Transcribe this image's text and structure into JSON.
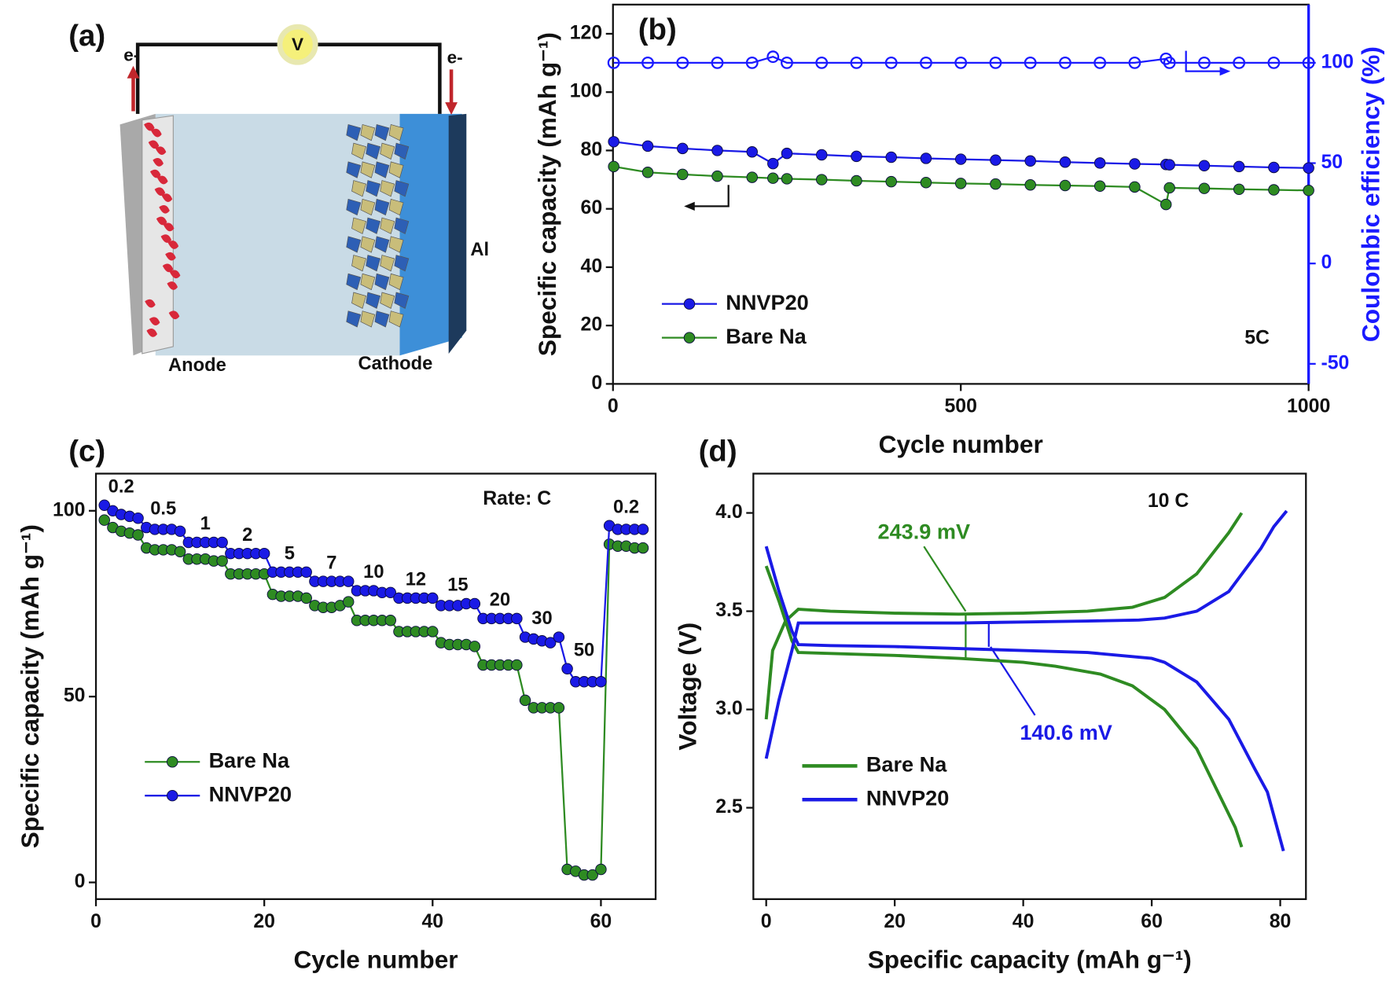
{
  "diagram": {
    "label": "(a)",
    "voltmeter": "V",
    "electron_left": "e-",
    "electron_right": "e-",
    "anode": "Anode",
    "cathode": "Cathode",
    "collector": "Al"
  },
  "chart_data": [
    {
      "type": "line",
      "panel_label": "(b)",
      "xlabel": "Cycle number",
      "ylabel": "Specific capacity (mAh g⁻¹)",
      "y2label": "Coulombic efficiency (%)",
      "x": [
        1,
        50,
        100,
        150,
        200,
        230,
        250,
        300,
        350,
        400,
        450,
        500,
        550,
        600,
        650,
        700,
        750,
        795,
        800,
        850,
        900,
        950,
        1000
      ],
      "series": [
        {
          "name": "NNVP20",
          "color": "#1a1ae6",
          "marker": "filled",
          "values": [
            83,
            81.5,
            80.7,
            80,
            79.5,
            75.5,
            79,
            78.5,
            78,
            77.7,
            77.3,
            77,
            76.7,
            76.4,
            76,
            75.7,
            75.4,
            75.2,
            75.1,
            74.8,
            74.5,
            74.2,
            74
          ]
        },
        {
          "name": "Bare Na",
          "color": "#2e8b22",
          "marker": "filled",
          "values": [
            74.5,
            72.5,
            71.8,
            71.2,
            70.8,
            70.5,
            70.3,
            70,
            69.6,
            69.3,
            69,
            68.7,
            68.5,
            68.2,
            68,
            67.8,
            67.5,
            61.5,
            67.2,
            67,
            66.7,
            66.5,
            66.3
          ]
        },
        {
          "color": "#1a1aff",
          "marker": "open",
          "axis": "y2",
          "values": [
            100,
            100,
            100,
            100,
            100,
            103,
            100,
            100,
            100,
            100,
            100,
            100,
            100,
            100,
            100,
            100,
            100,
            102,
            100,
            100,
            100,
            100,
            100
          ]
        }
      ],
      "xlim": [
        0,
        1000
      ],
      "xticks": [
        0,
        500,
        1000
      ],
      "ylim": [
        0,
        130
      ],
      "yticks": [
        0,
        20,
        40,
        60,
        80,
        100,
        120
      ],
      "y2lim": [
        -60,
        129
      ],
      "y2ticks": [
        -50,
        0,
        50,
        100
      ],
      "y2color": "#1a1aff",
      "legend": "lower left",
      "annotations": [
        "5C"
      ]
    },
    {
      "type": "line",
      "panel_label": "(c)",
      "xlabel": "Cycle number",
      "ylabel": "Specific capacity (mAh g⁻¹)",
      "x": [
        1,
        2,
        3,
        4,
        5,
        6,
        7,
        8,
        9,
        10,
        11,
        12,
        13,
        14,
        15,
        16,
        17,
        18,
        19,
        20,
        21,
        22,
        23,
        24,
        25,
        26,
        27,
        28,
        29,
        30,
        31,
        32,
        33,
        34,
        35,
        36,
        37,
        38,
        39,
        40,
        41,
        42,
        43,
        44,
        45,
        46,
        47,
        48,
        49,
        50,
        51,
        52,
        53,
        54,
        55,
        56,
        57,
        58,
        59,
        60,
        61,
        62,
        63,
        64,
        65
      ],
      "series": [
        {
          "name": "Bare Na",
          "color": "#2e8b22",
          "marker": "filled",
          "values": [
            97.5,
            95.5,
            94.5,
            94,
            93.5,
            90,
            89.5,
            89.5,
            89.5,
            89,
            87,
            87,
            87,
            86.5,
            86.5,
            83,
            83,
            83,
            83,
            83,
            77.5,
            77,
            77,
            77,
            76.5,
            74.5,
            74,
            74,
            74.5,
            75.5,
            70.5,
            70.5,
            70.5,
            70.5,
            70.5,
            67.5,
            67.5,
            67.5,
            67.5,
            67.5,
            64.5,
            64,
            64,
            64,
            63.5,
            58.5,
            58.5,
            58.5,
            58.5,
            58.5,
            49,
            47,
            47,
            47,
            47,
            3.5,
            3,
            2,
            2,
            3.5,
            91,
            90.5,
            90.5,
            90,
            90
          ]
        },
        {
          "name": "NNVP20",
          "color": "#1a1ae6",
          "marker": "filled",
          "values": [
            101.5,
            100,
            99,
            98.5,
            98,
            95.5,
            95,
            95,
            95,
            94.5,
            91.5,
            91.5,
            91.5,
            91.5,
            91.5,
            88.5,
            88.5,
            88.5,
            88.5,
            88.5,
            83.5,
            83.5,
            83.5,
            83.5,
            83.5,
            81,
            81,
            81,
            81,
            81,
            78.5,
            78.5,
            78.5,
            78,
            78,
            76.5,
            76.5,
            76.5,
            76.5,
            76.5,
            74.5,
            74.5,
            74.5,
            75,
            75,
            71,
            71,
            71,
            71,
            71,
            66,
            65.5,
            65,
            64.5,
            66,
            57.5,
            54,
            54,
            54,
            54,
            96,
            95,
            95,
            95,
            95
          ]
        }
      ],
      "xlim": [
        0,
        66.5
      ],
      "xticks": [
        0,
        20,
        40,
        60
      ],
      "ylim": [
        -4.5,
        110
      ],
      "yticks": [
        0,
        50,
        100
      ],
      "legend": "center left",
      "annotations": [
        "Rate: C"
      ],
      "rate_labels": [
        "0.2",
        "0.5",
        "1",
        "2",
        "5",
        "7",
        "10",
        "12",
        "15",
        "20",
        "30",
        "50",
        "0.2"
      ]
    },
    {
      "type": "line",
      "panel_label": "(d)",
      "xlabel": "Specific capacity (mAh g⁻¹)",
      "ylabel": "Voltage (V)",
      "series": [
        {
          "name": "Bare Na",
          "color": "#2e8b22",
          "x": [
            0,
            1,
            3,
            5,
            10,
            20,
            30,
            40,
            50,
            57,
            62,
            67,
            72,
            74,
            null,
            0,
            2,
            4,
            5,
            10,
            20,
            30,
            40,
            45,
            52,
            57,
            62,
            67,
            70,
            73,
            74
          ],
          "values": [
            2.95,
            3.3,
            3.45,
            3.51,
            3.5,
            3.49,
            3.485,
            3.49,
            3.5,
            3.52,
            3.57,
            3.69,
            3.9,
            4.0,
            null,
            3.73,
            3.55,
            3.35,
            3.29,
            3.285,
            3.275,
            3.26,
            3.24,
            3.22,
            3.18,
            3.12,
            3.0,
            2.8,
            2.6,
            2.4,
            2.3
          ]
        },
        {
          "name": "NNVP20",
          "color": "#1a1ae6",
          "x": [
            0,
            2,
            4,
            5,
            10,
            20,
            30,
            40,
            50,
            58,
            62,
            67,
            72,
            77,
            79,
            81,
            null,
            0,
            2,
            4,
            5,
            10,
            20,
            30,
            40,
            50,
            60,
            62,
            67,
            72,
            76,
            78,
            80.5
          ],
          "values": [
            2.75,
            3.05,
            3.3,
            3.44,
            3.44,
            3.44,
            3.44,
            3.445,
            3.45,
            3.455,
            3.465,
            3.5,
            3.6,
            3.82,
            3.93,
            4.01,
            null,
            3.83,
            3.6,
            3.4,
            3.33,
            3.325,
            3.32,
            3.31,
            3.3,
            3.29,
            3.26,
            3.24,
            3.14,
            2.95,
            2.7,
            2.58,
            2.28
          ]
        }
      ],
      "xlim": [
        -2,
        84
      ],
      "xticks": [
        0,
        20,
        40,
        60,
        80
      ],
      "ylim": [
        2.035,
        4.2
      ],
      "yticks": [
        2.5,
        {
          "value": 3,
          "label": "3.0"
        },
        3.5,
        {
          "value": 4,
          "label": "4.0"
        }
      ],
      "legend": "lower left",
      "annotations": [
        "10 C",
        "243.9 mV",
        "140.6 mV"
      ]
    }
  ]
}
